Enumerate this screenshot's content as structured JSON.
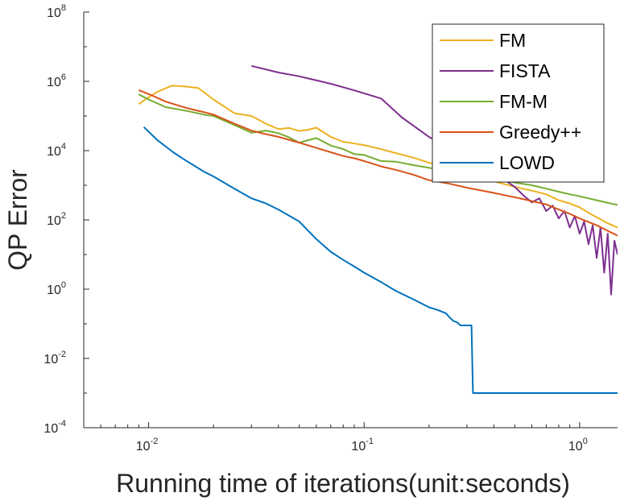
{
  "chart_data": {
    "type": "line",
    "title": "",
    "xlabel": "Running time of iterations(unit:seconds)",
    "ylabel": "QP Error",
    "xscale": "log",
    "yscale": "log",
    "xlim": [
      0.005,
      1.5
    ],
    "ylim": [
      0.0001,
      100000000
    ],
    "grid": false,
    "legend_position": "top-right",
    "x_ticks": [
      {
        "value": 0.01,
        "base": "10",
        "exp": "-2"
      },
      {
        "value": 0.1,
        "base": "10",
        "exp": "-1"
      },
      {
        "value": 1,
        "base": "10",
        "exp": "0"
      }
    ],
    "y_ticks": [
      {
        "value": 0.0001,
        "base": "10",
        "exp": "-4"
      },
      {
        "value": 0.01,
        "base": "10",
        "exp": "-2"
      },
      {
        "value": 1,
        "base": "10",
        "exp": "0"
      },
      {
        "value": 100,
        "base": "10",
        "exp": "2"
      },
      {
        "value": 10000,
        "base": "10",
        "exp": "4"
      },
      {
        "value": 1000000,
        "base": "10",
        "exp": "6"
      },
      {
        "value": 100000000,
        "base": "10",
        "exp": "8"
      }
    ],
    "series": [
      {
        "name": "FM",
        "color": "#EDB120",
        "x": [
          0.009,
          0.0098,
          0.011,
          0.0128,
          0.0145,
          0.017,
          0.02,
          0.025,
          0.03,
          0.035,
          0.04,
          0.045,
          0.05,
          0.055,
          0.06,
          0.07,
          0.08,
          0.09,
          0.1,
          0.12,
          0.14,
          0.17,
          0.2,
          0.25,
          0.3,
          0.4,
          0.5,
          0.6,
          0.7,
          0.8,
          0.9,
          1.0,
          1.1,
          1.2,
          1.35,
          1.5
        ],
        "y": [
          220000,
          320000,
          500000,
          750000,
          720000,
          640000,
          300000,
          120000,
          100000,
          60000,
          42000,
          45000,
          37000,
          40000,
          46000,
          25000,
          18000,
          16000,
          14500,
          11000,
          8500,
          6200,
          4500,
          3000,
          1900,
          1300,
          900,
          700,
          550,
          370,
          300,
          230,
          160,
          120,
          80,
          60
        ]
      },
      {
        "name": "FISTA",
        "color": "#7E2F8E",
        "x": [
          0.03,
          0.04,
          0.05,
          0.07,
          0.09,
          0.12,
          0.15,
          0.2,
          0.25,
          0.3,
          0.35,
          0.4,
          0.45,
          0.5,
          0.55,
          0.6,
          0.65,
          0.7,
          0.75,
          0.8,
          0.85,
          0.9,
          0.95,
          1.0,
          1.05,
          1.1,
          1.15,
          1.2,
          1.25,
          1.3,
          1.35,
          1.4,
          1.45,
          1.5
        ],
        "y": [
          2800000,
          1800000,
          1400000,
          850000,
          550000,
          320000,
          90000,
          25000,
          11000,
          5500,
          3200,
          2200,
          1400,
          900,
          500,
          320,
          420,
          180,
          260,
          110,
          180,
          60,
          130,
          40,
          90,
          20,
          70,
          8,
          60,
          3,
          40,
          0.7,
          25,
          10
        ]
      },
      {
        "name": "FM-M",
        "color": "#77AC30",
        "x": [
          0.009,
          0.01,
          0.012,
          0.015,
          0.018,
          0.02,
          0.025,
          0.03,
          0.035,
          0.04,
          0.045,
          0.05,
          0.06,
          0.07,
          0.08,
          0.09,
          0.1,
          0.12,
          0.14,
          0.17,
          0.2,
          0.25,
          0.3,
          0.4,
          0.5,
          0.6,
          0.7,
          0.8,
          0.9,
          1.0,
          1.2,
          1.5
        ],
        "y": [
          420000,
          300000,
          180000,
          140000,
          110000,
          100000,
          55000,
          33000,
          38000,
          32000,
          24000,
          17000,
          23000,
          14000,
          11000,
          8000,
          7500,
          5000,
          4800,
          3800,
          3200,
          2500,
          2000,
          1500,
          1200,
          1000,
          800,
          650,
          550,
          480,
          370,
          270
        ]
      },
      {
        "name": "Greedy++",
        "color": "#D95319",
        "x": [
          0.009,
          0.0105,
          0.012,
          0.015,
          0.018,
          0.02,
          0.025,
          0.03,
          0.035,
          0.04,
          0.05,
          0.06,
          0.07,
          0.08,
          0.09,
          0.1,
          0.12,
          0.14,
          0.17,
          0.2,
          0.25,
          0.3,
          0.4,
          0.5,
          0.6,
          0.7,
          0.8,
          0.9,
          1.0,
          1.2,
          1.5
        ],
        "y": [
          560000,
          380000,
          260000,
          170000,
          130000,
          110000,
          60000,
          38000,
          30000,
          25000,
          17000,
          12000,
          9000,
          7000,
          6000,
          5000,
          3500,
          2800,
          2000,
          1400,
          1100,
          850,
          600,
          450,
          350,
          280,
          200,
          150,
          110,
          70,
          35
        ]
      },
      {
        "name": "LOWD",
        "color": "#0072BD",
        "x": [
          0.0095,
          0.011,
          0.013,
          0.015,
          0.018,
          0.02,
          0.025,
          0.03,
          0.035,
          0.04,
          0.05,
          0.06,
          0.07,
          0.08,
          0.09,
          0.1,
          0.12,
          0.14,
          0.17,
          0.2,
          0.22,
          0.24,
          0.25,
          0.26,
          0.27,
          0.28,
          0.3,
          0.315,
          0.32,
          1.0,
          1.5
        ],
        "y": [
          48000,
          20000,
          9000,
          5000,
          2500,
          1800,
          800,
          420,
          300,
          200,
          90,
          28,
          12,
          7,
          4.5,
          3,
          1.6,
          0.9,
          0.5,
          0.3,
          0.25,
          0.2,
          0.15,
          0.12,
          0.11,
          0.09,
          0.09,
          0.09,
          0.001,
          0.001,
          0.001
        ]
      }
    ]
  }
}
